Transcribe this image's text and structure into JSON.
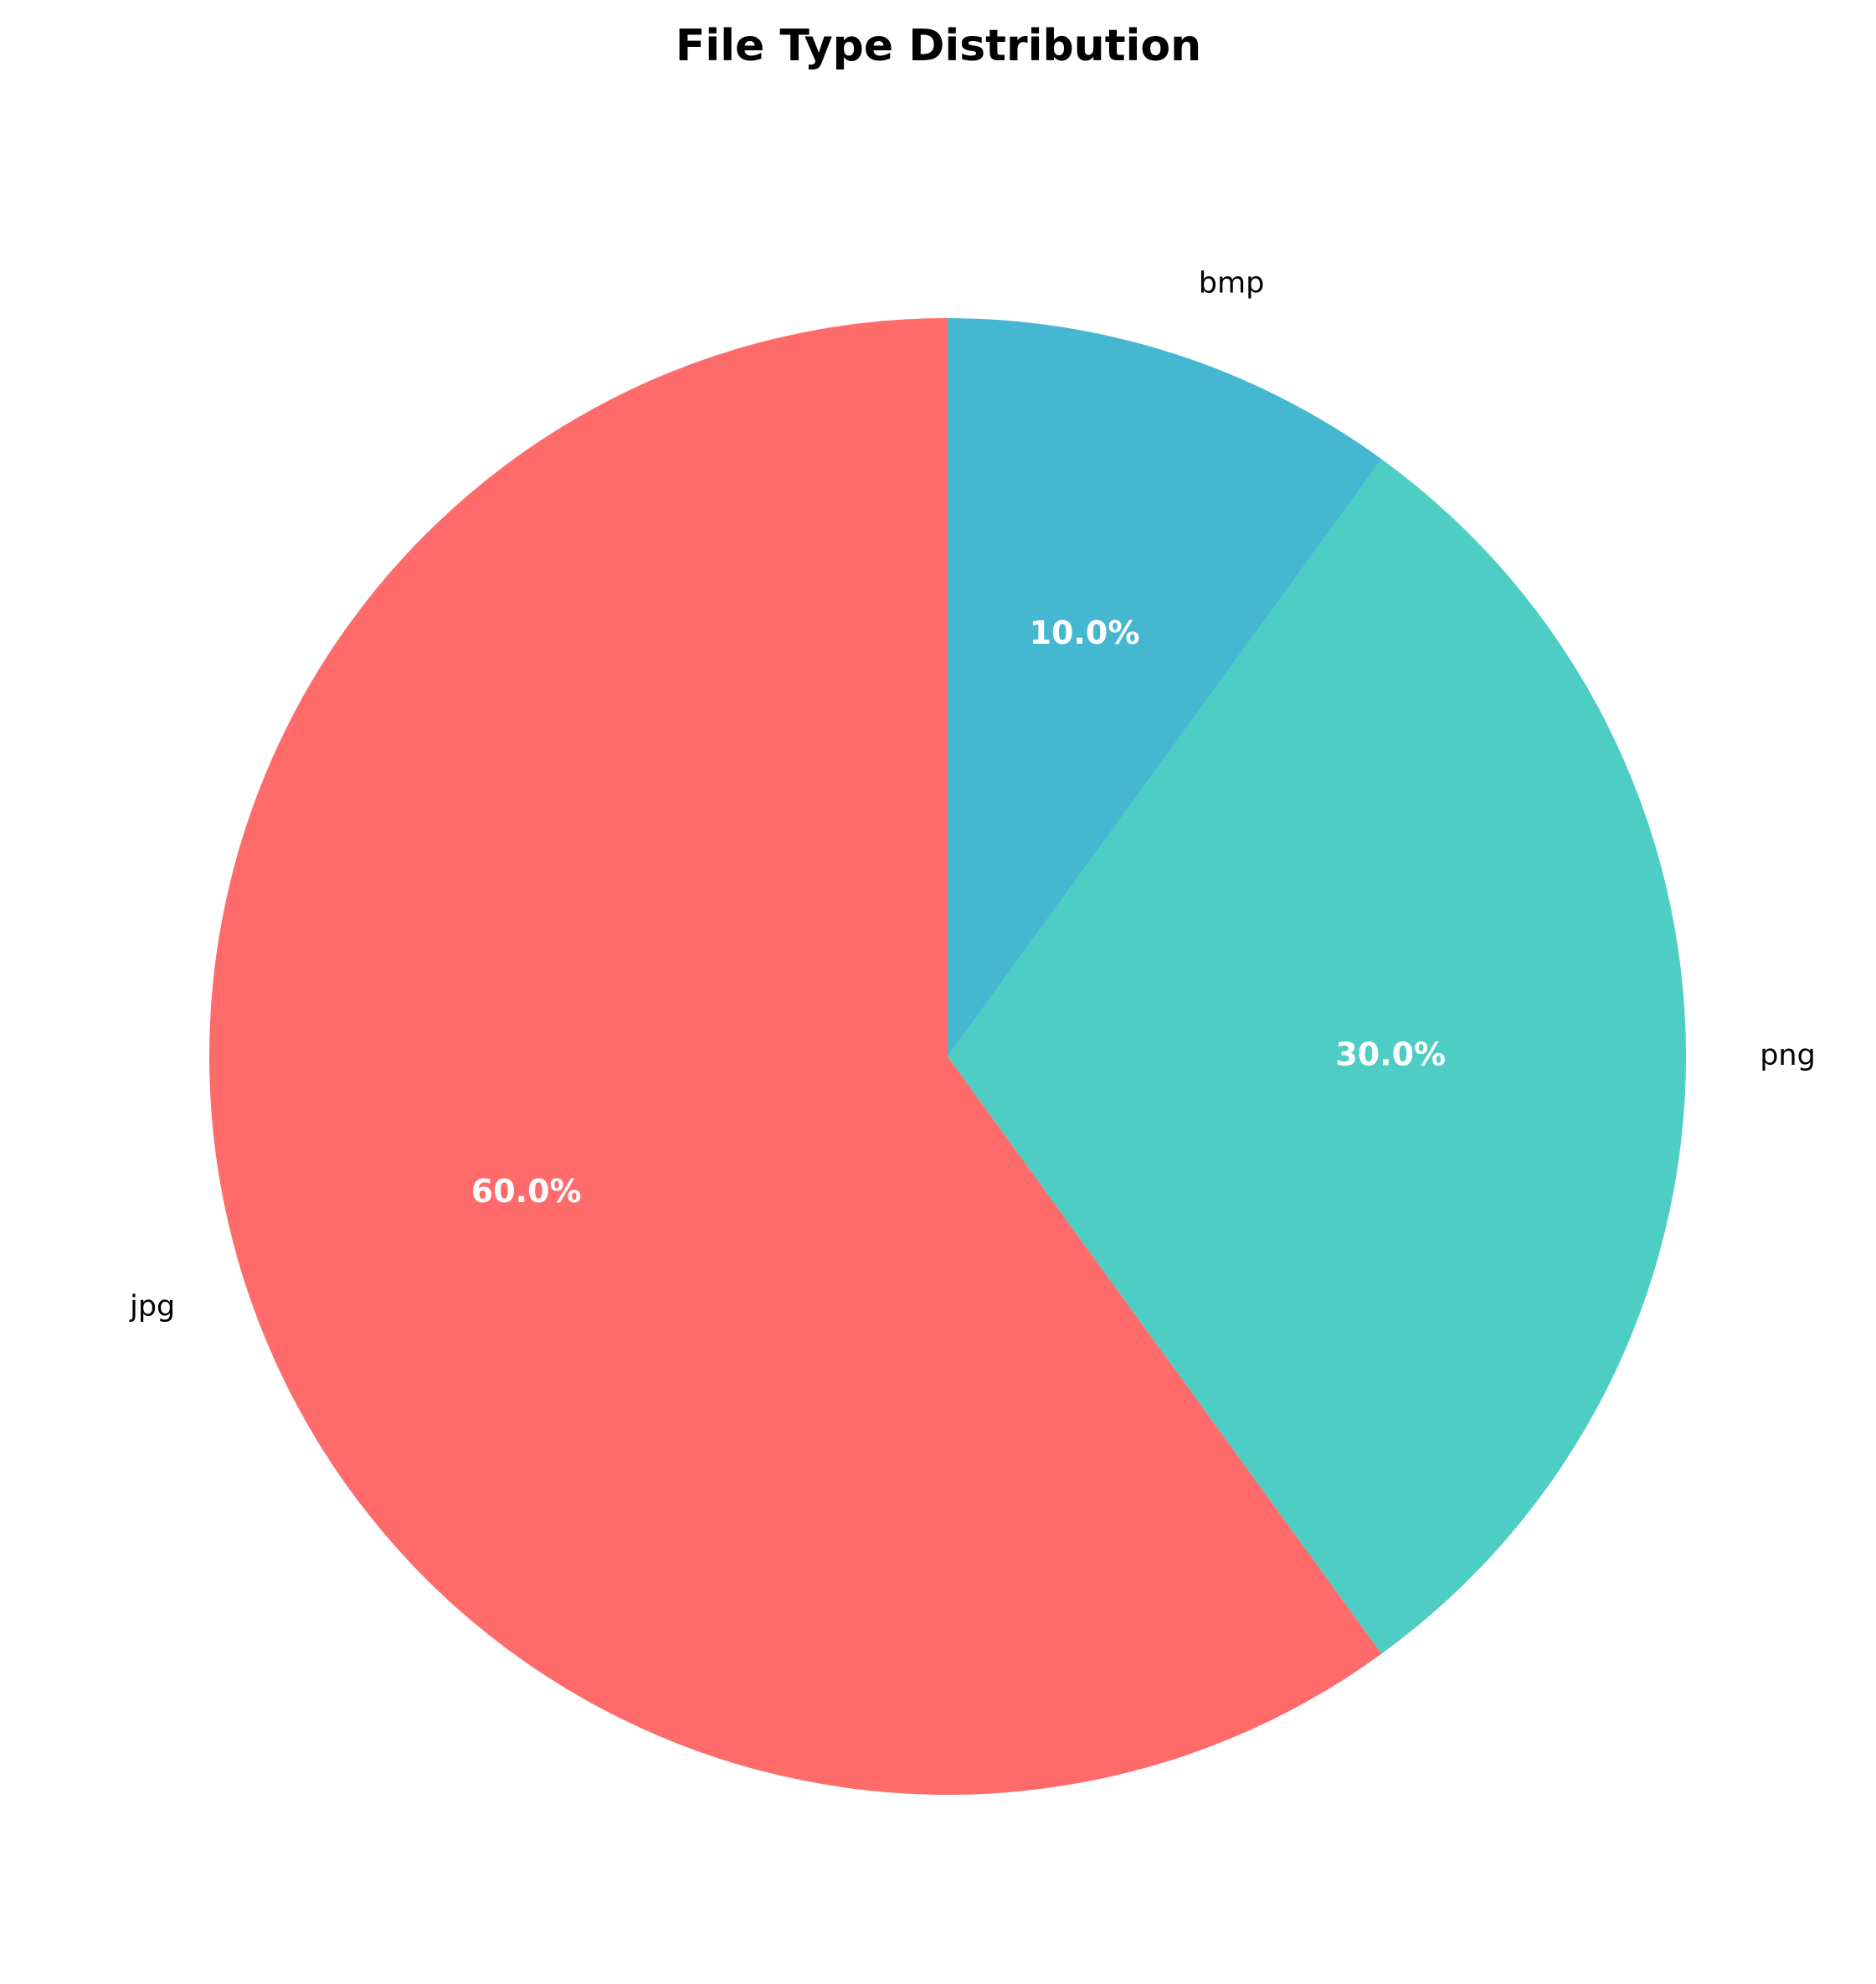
{
  "chart_data": {
    "type": "pie",
    "title": "File Type Distribution",
    "start_angle": "top",
    "direction": "counterclockwise",
    "slices": [
      {
        "label": "jpg",
        "value": 60.0,
        "pct_label": "60.0%",
        "color": "#FF6B6B"
      },
      {
        "label": "png",
        "value": 30.0,
        "pct_label": "30.0%",
        "color": "#4ECDC4"
      },
      {
        "label": "bmp",
        "value": 10.0,
        "pct_label": "10.0%",
        "color": "#45B7D1"
      }
    ]
  }
}
